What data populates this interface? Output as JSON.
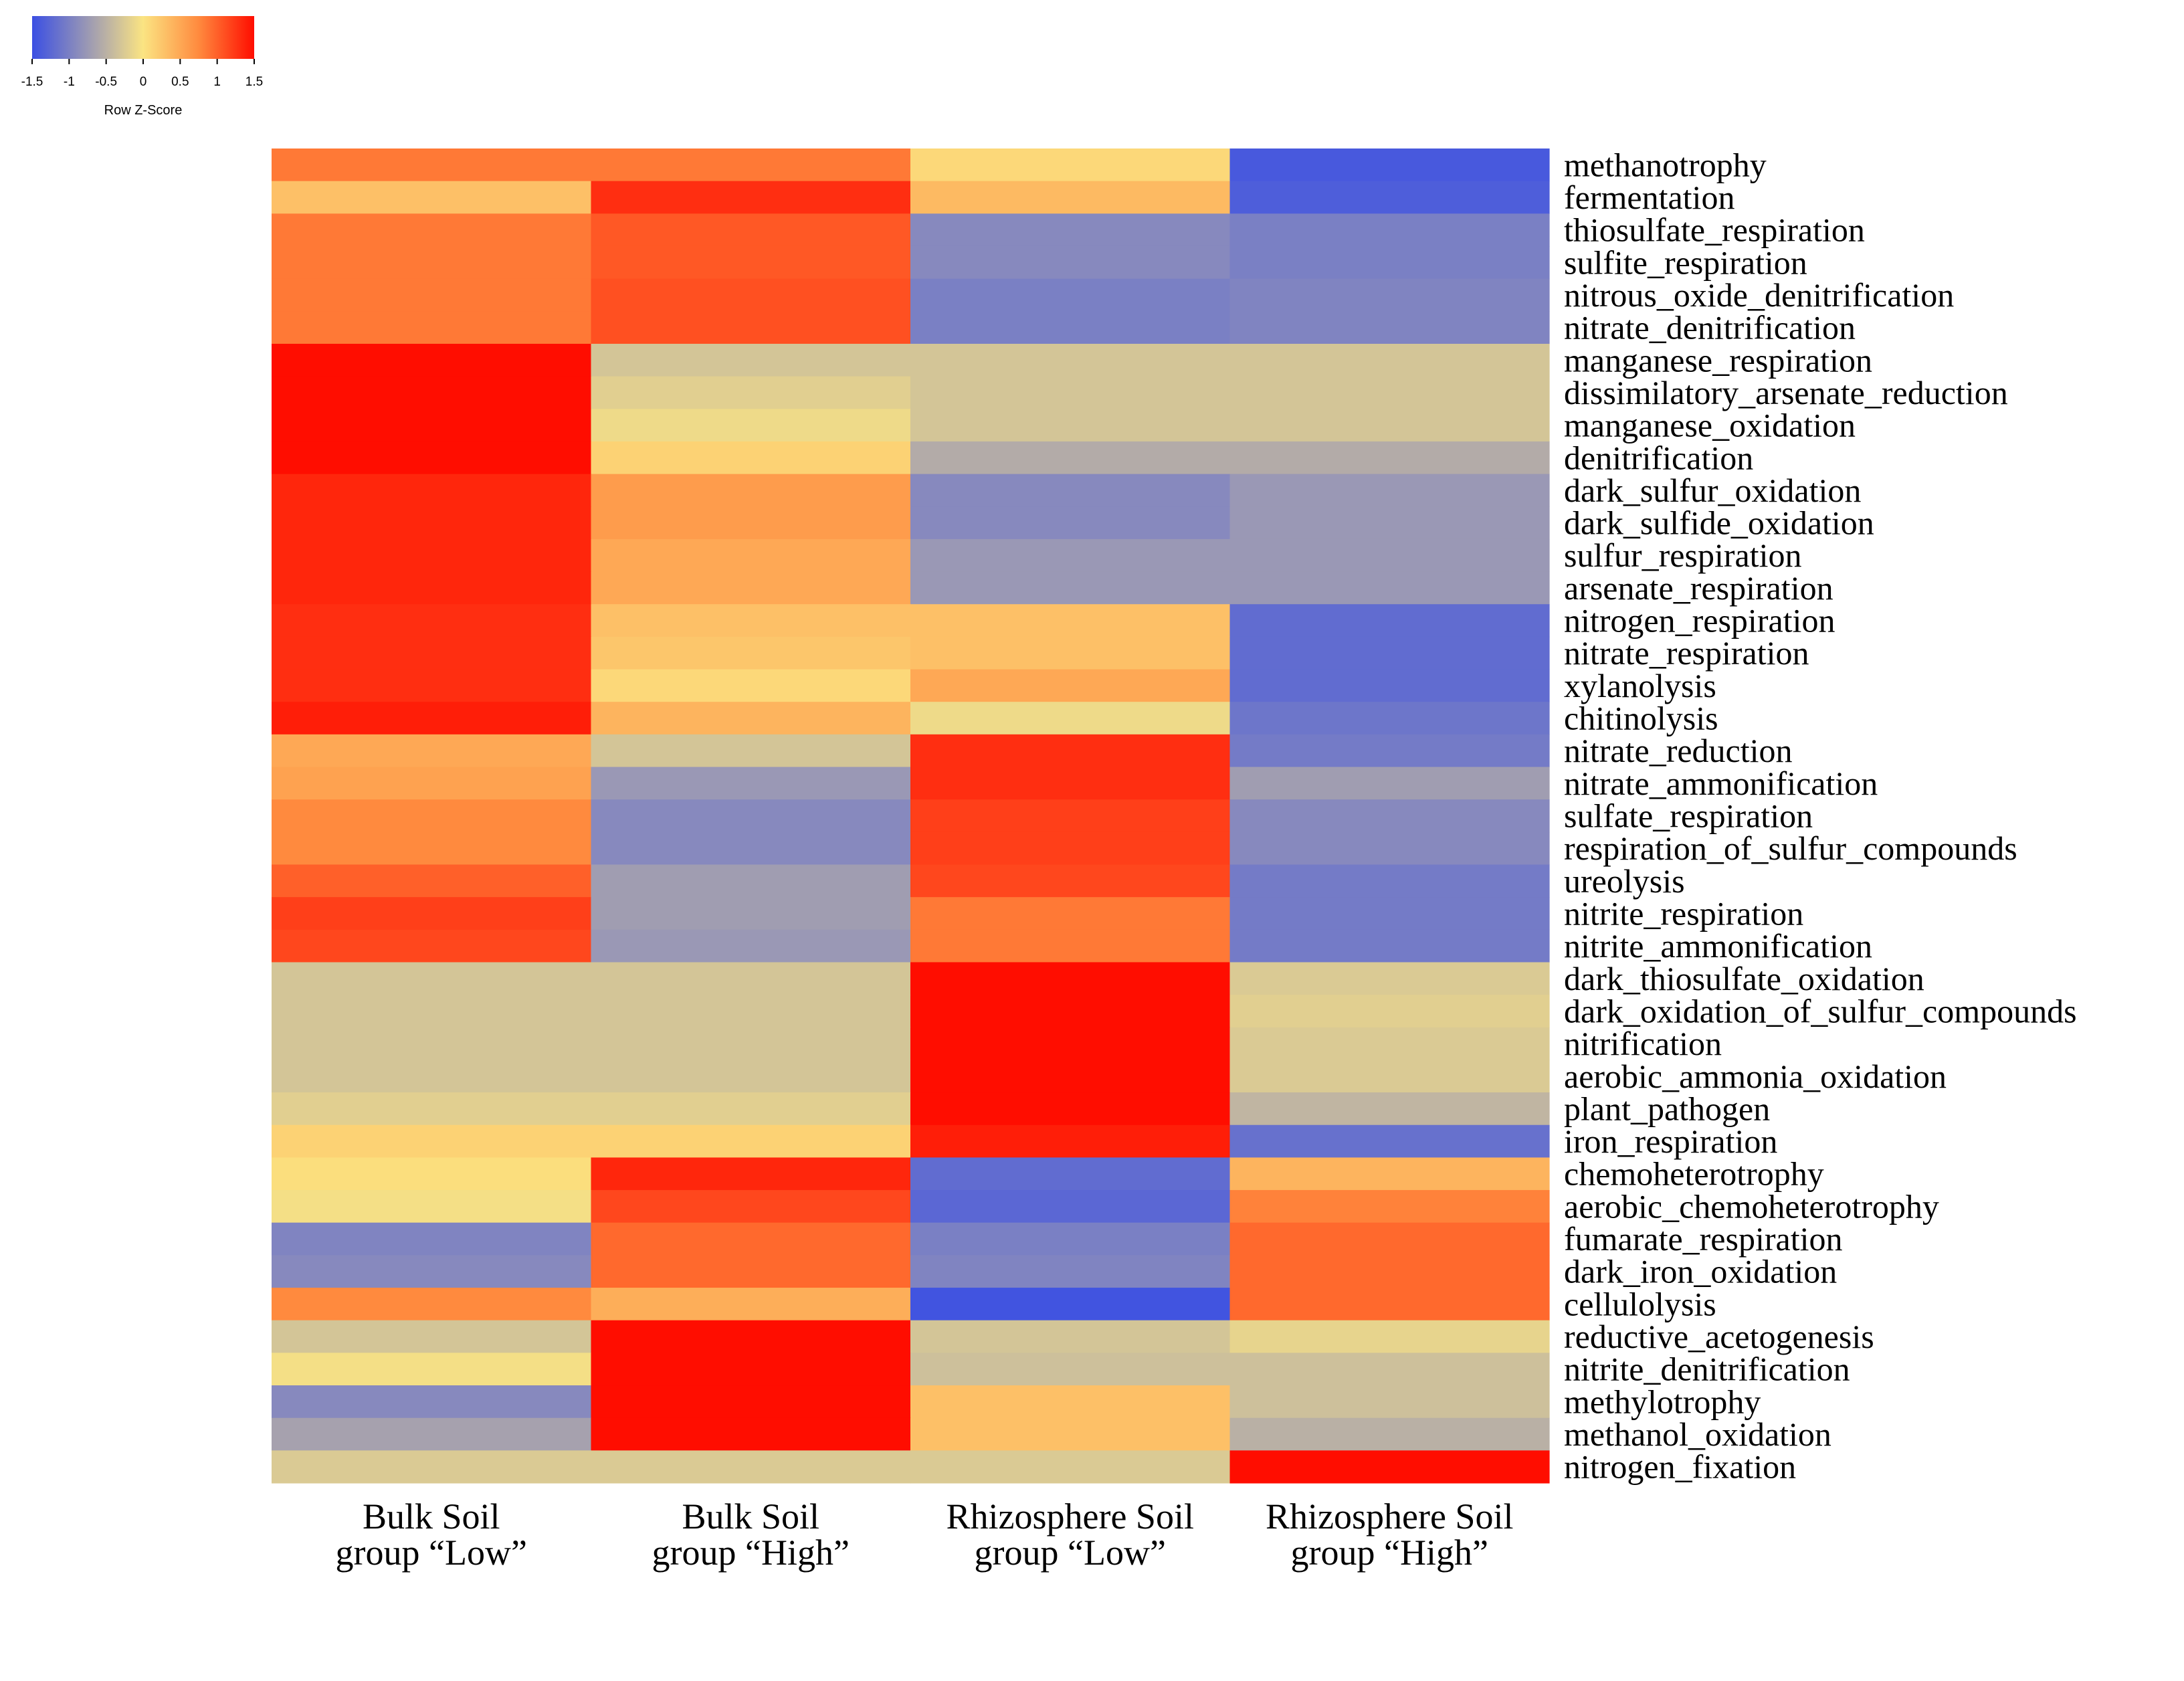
{
  "chart_data": {
    "type": "heatmap",
    "legend": {
      "title": "Row Z-Score",
      "ticks": [
        "-1.5",
        "-1",
        "-0.5",
        "0",
        "0.5",
        "1",
        "1.5"
      ],
      "min": -1.5,
      "max": 1.5,
      "placement": "top-left"
    },
    "columns": [
      {
        "line1": "Bulk Soil",
        "line2": "group “Low”"
      },
      {
        "line1": "Bulk Soil",
        "line2": "group “High”"
      },
      {
        "line1": "Rhizosphere Soil",
        "line2": "group “Low”"
      },
      {
        "line1": "Rhizosphere Soil",
        "line2": "group “High”"
      }
    ],
    "rows": [
      "methanotrophy",
      "fermentation",
      "thiosulfate_respiration",
      "sulfite_respiration",
      "nitrous_oxide_denitrification",
      "nitrate_denitrification",
      "manganese_respiration",
      "dissimilatory_arsenate_reduction",
      "manganese_oxidation",
      "denitrification",
      "dark_sulfur_oxidation",
      "dark_sulfide_oxidation",
      "sulfur_respiration",
      "arsenate_respiration",
      "nitrogen_respiration",
      "nitrate_respiration",
      "xylanolysis",
      "chitinolysis",
      "nitrate_reduction",
      "nitrate_ammonification",
      "sulfate_respiration",
      "respiration_of_sulfur_compounds",
      "ureolysis",
      "nitrite_respiration",
      "nitrite_ammonification",
      "dark_thiosulfate_oxidation",
      "dark_oxidation_of_sulfur_compounds",
      "nitrification",
      "aerobic_ammonia_oxidation",
      "plant_pathogen",
      "iron_respiration",
      "chemoheterotrophy",
      "aerobic_chemoheterotrophy",
      "fumarate_respiration",
      "dark_iron_oxidation",
      "cellulolysis",
      "reductive_acetogenesis",
      "nitrite_denitrification",
      "methylotrophy",
      "methanol_oxidation",
      "nitrogen_fixation"
    ],
    "values": [
      [
        0.85,
        0.85,
        0.1,
        -1.4
      ],
      [
        0.3,
        1.3,
        0.35,
        -1.35
      ],
      [
        0.85,
        1.05,
        -0.9,
        -1.0
      ],
      [
        0.85,
        1.05,
        -0.9,
        -1.0
      ],
      [
        0.85,
        1.1,
        -1.0,
        -0.95
      ],
      [
        0.85,
        1.1,
        -1.0,
        -0.95
      ],
      [
        1.5,
        -0.3,
        -0.3,
        -0.3
      ],
      [
        1.5,
        -0.2,
        -0.3,
        -0.3
      ],
      [
        1.5,
        -0.1,
        -0.3,
        -0.3
      ],
      [
        1.5,
        0.15,
        -0.55,
        -0.55
      ],
      [
        1.35,
        0.6,
        -0.9,
        -0.75
      ],
      [
        1.35,
        0.6,
        -0.9,
        -0.75
      ],
      [
        1.35,
        0.5,
        -0.75,
        -0.75
      ],
      [
        1.35,
        0.5,
        -0.75,
        -0.75
      ],
      [
        1.3,
        0.3,
        0.3,
        -1.2
      ],
      [
        1.3,
        0.25,
        0.3,
        -1.2
      ],
      [
        1.3,
        0.1,
        0.5,
        -1.2
      ],
      [
        1.4,
        0.4,
        -0.1,
        -1.1
      ],
      [
        0.5,
        -0.3,
        1.3,
        -1.05
      ],
      [
        0.55,
        -0.75,
        1.3,
        -0.7
      ],
      [
        0.75,
        -0.9,
        1.2,
        -0.9
      ],
      [
        0.75,
        -0.9,
        1.2,
        -0.9
      ],
      [
        1.0,
        -0.7,
        1.15,
        -1.05
      ],
      [
        1.2,
        -0.7,
        0.85,
        -1.05
      ],
      [
        1.15,
        -0.75,
        0.85,
        -1.05
      ],
      [
        -0.3,
        -0.3,
        1.5,
        -0.25
      ],
      [
        -0.3,
        -0.3,
        1.5,
        -0.2
      ],
      [
        -0.3,
        -0.3,
        1.5,
        -0.25
      ],
      [
        -0.3,
        -0.3,
        1.5,
        -0.25
      ],
      [
        -0.2,
        -0.2,
        1.5,
        -0.45
      ],
      [
        0.15,
        0.15,
        1.4,
        -1.15
      ],
      [
        0.05,
        1.35,
        -1.2,
        0.4
      ],
      [
        -0.05,
        1.15,
        -1.25,
        0.8
      ],
      [
        -0.95,
        0.95,
        -1.0,
        0.95
      ],
      [
        -0.9,
        0.95,
        -0.95,
        0.95
      ],
      [
        0.75,
        0.45,
        -1.45,
        0.95
      ],
      [
        -0.3,
        1.5,
        -0.3,
        -0.15
      ],
      [
        -0.05,
        1.5,
        -0.35,
        -0.35
      ],
      [
        -0.9,
        1.5,
        0.3,
        -0.35
      ],
      [
        -0.65,
        1.5,
        0.3,
        -0.5
      ],
      [
        -0.25,
        -0.25,
        -0.25,
        1.5
      ]
    ]
  }
}
